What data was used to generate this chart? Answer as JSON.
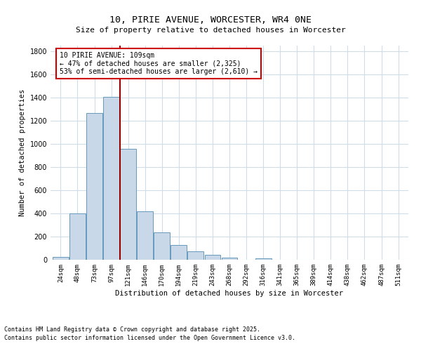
{
  "title": "10, PIRIE AVENUE, WORCESTER, WR4 0NE",
  "subtitle": "Size of property relative to detached houses in Worcester",
  "xlabel": "Distribution of detached houses by size in Worcester",
  "ylabel": "Number of detached properties",
  "categories": [
    "24sqm",
    "48sqm",
    "73sqm",
    "97sqm",
    "121sqm",
    "146sqm",
    "170sqm",
    "194sqm",
    "219sqm",
    "243sqm",
    "268sqm",
    "292sqm",
    "316sqm",
    "341sqm",
    "365sqm",
    "389sqm",
    "414sqm",
    "438sqm",
    "462sqm",
    "487sqm",
    "511sqm"
  ],
  "values": [
    25,
    400,
    1270,
    1410,
    960,
    420,
    235,
    125,
    70,
    45,
    20,
    0,
    15,
    0,
    0,
    0,
    0,
    0,
    0,
    0,
    0
  ],
  "bar_color": "#c8d8e8",
  "bar_edge_color": "#6699bb",
  "annotation_line_color": "#990000",
  "annotation_box_text": "10 PIRIE AVENUE: 109sqm\n← 47% of detached houses are smaller (2,325)\n53% of semi-detached houses are larger (2,610) →",
  "footnote1": "Contains HM Land Registry data © Crown copyright and database right 2025.",
  "footnote2": "Contains public sector information licensed under the Open Government Licence v3.0.",
  "background_color": "#ffffff",
  "grid_color": "#d0dde8",
  "ylim": [
    0,
    1850
  ],
  "yticks": [
    0,
    200,
    400,
    600,
    800,
    1000,
    1200,
    1400,
    1600,
    1800
  ]
}
